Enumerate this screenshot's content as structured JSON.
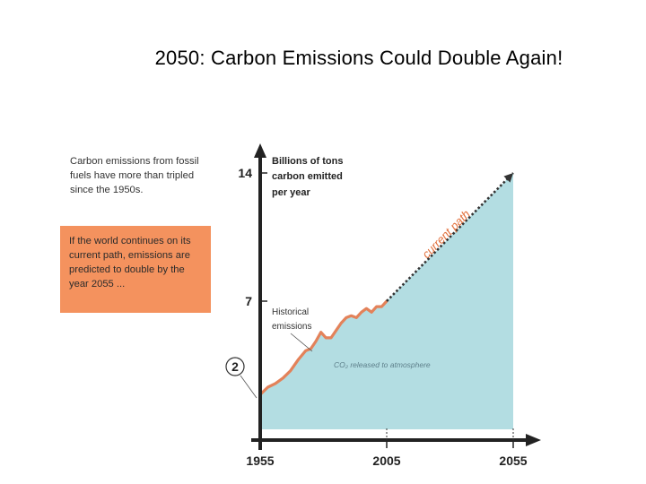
{
  "slide": {
    "title": "2050: Carbon Emissions Could Double Again!"
  },
  "notes": {
    "top": "Carbon emissions from fossil fuels have more than tripled since the 1950s.",
    "box": "If the world continues on its current path, emissions are predicted to double by the year 2055 ..."
  },
  "colors": {
    "area": "#b3dde2",
    "historical_line": "#e3825a",
    "projection_line": "#333333",
    "note_box": "#f4925e",
    "path_label": "#e2703c"
  },
  "chart_data": {
    "type": "area",
    "title": "",
    "ylabel": "Billions of tons carbon emitted per year",
    "xlim": [
      1955,
      2055
    ],
    "ylim": [
      0,
      15
    ],
    "x_ticks": [
      1955,
      2005,
      2055
    ],
    "y_ticks": [
      7,
      14
    ],
    "annotations": {
      "start_value": "2",
      "historical": "Historical emissions",
      "area": "CO₂ released to atmosphere",
      "projection": "current path"
    },
    "series": [
      {
        "name": "Historical emissions",
        "x": [
          1955,
          1958,
          1961,
          1964,
          1967,
          1970,
          1973,
          1975,
          1977,
          1979,
          1981,
          1983,
          1985,
          1987,
          1989,
          1991,
          1993,
          1995,
          1997,
          1999,
          2001,
          2003,
          2005
        ],
        "values": [
          1.9,
          2.3,
          2.5,
          2.8,
          3.2,
          3.8,
          4.3,
          4.4,
          4.8,
          5.3,
          5.0,
          5.0,
          5.4,
          5.8,
          6.1,
          6.2,
          6.1,
          6.4,
          6.6,
          6.4,
          6.7,
          6.7,
          7.0
        ]
      },
      {
        "name": "current path",
        "x": [
          2005,
          2055
        ],
        "values": [
          7.0,
          14.0
        ]
      }
    ]
  }
}
